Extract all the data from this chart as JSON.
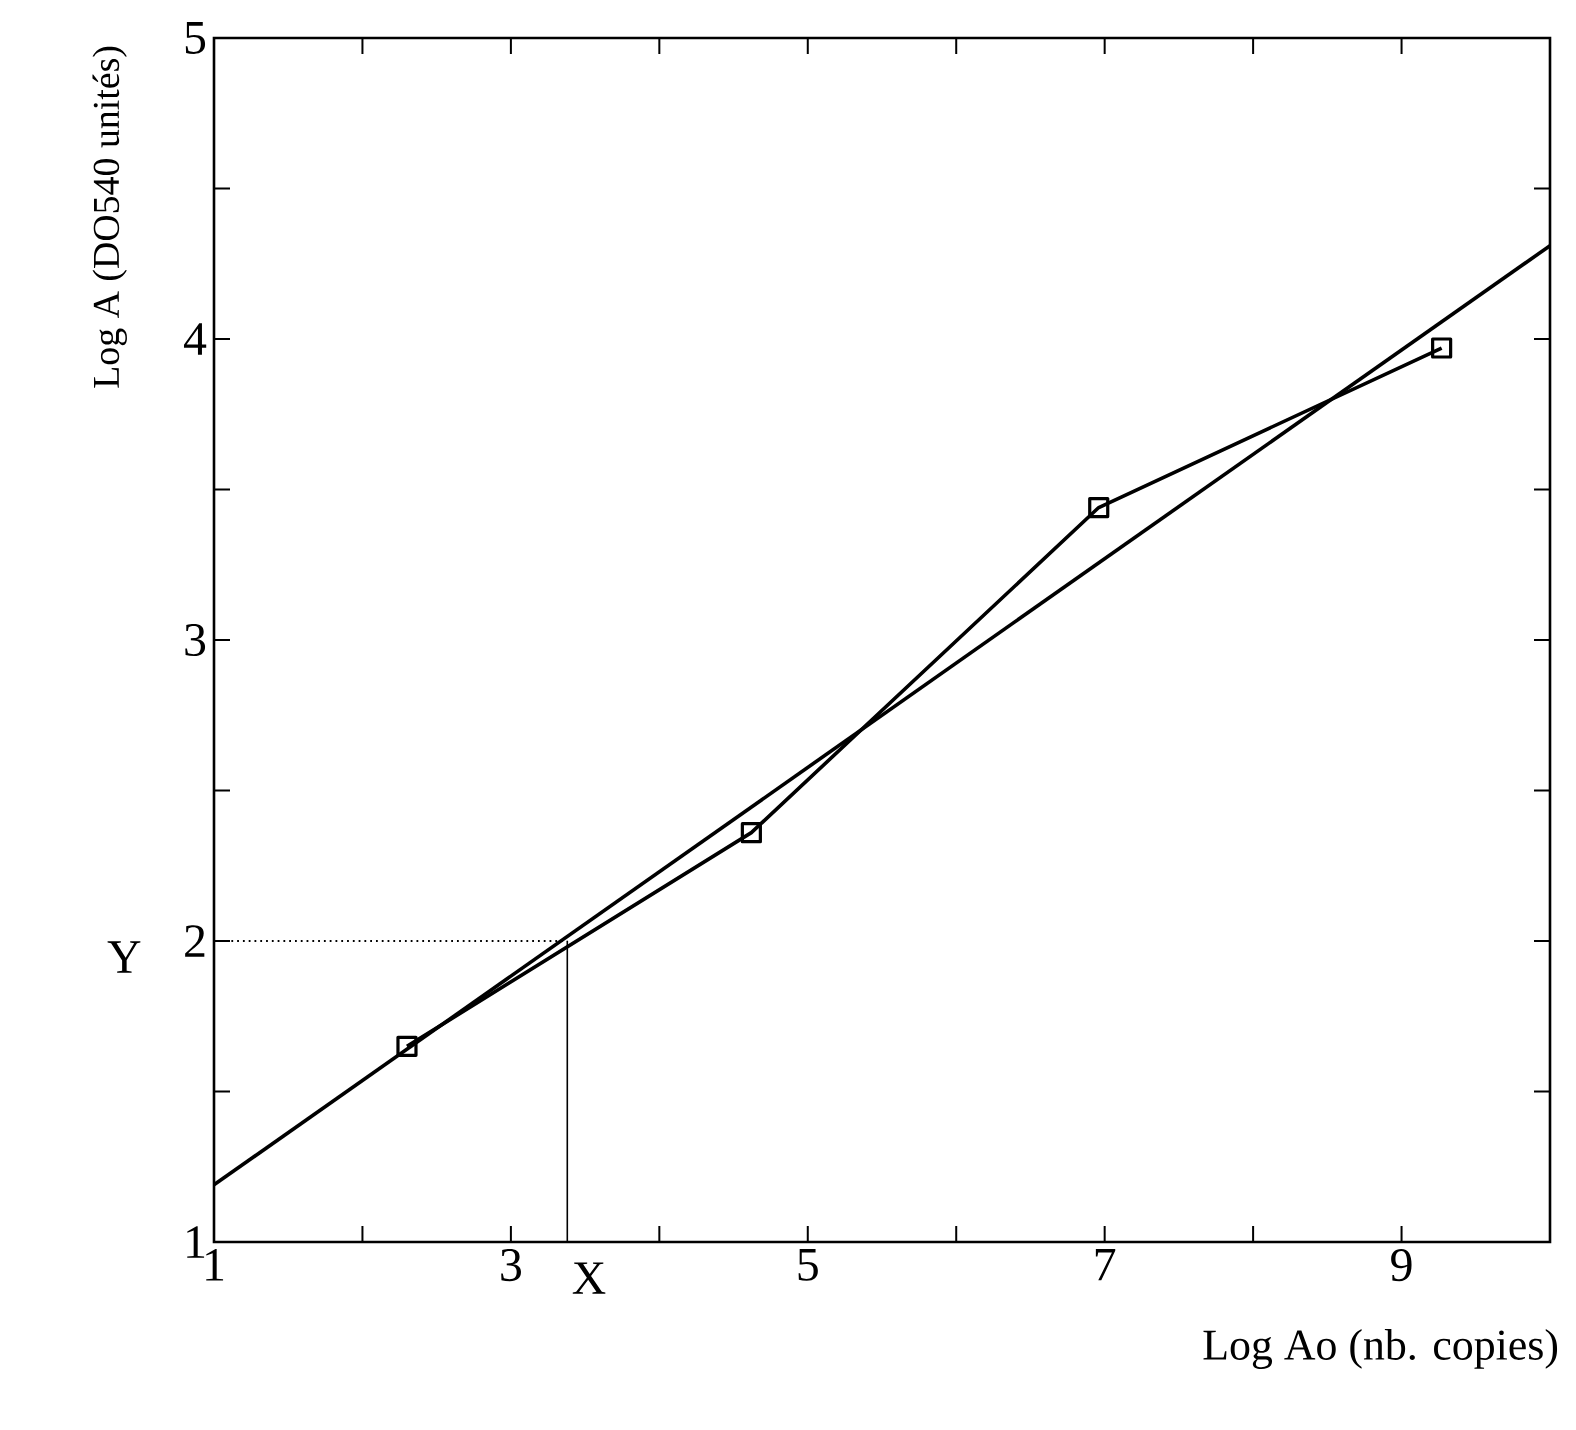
{
  "chart_data": {
    "type": "line",
    "xlabel": "Log Ao (nb. copies)",
    "ylabel": "Log A (DO540 unités)",
    "xlim": [
      1,
      10
    ],
    "ylim": [
      1,
      5
    ],
    "xticks": [
      1,
      {
        "value": 2,
        "label": null
      },
      3,
      {
        "value": 4,
        "label": null
      },
      5,
      {
        "value": 6,
        "label": null
      },
      7,
      {
        "value": 8,
        "label": null
      },
      9,
      {
        "value": 10,
        "label": null
      }
    ],
    "yticks": [
      1,
      {
        "value": 1.5,
        "label": null
      },
      2,
      {
        "value": 2.5,
        "label": null
      },
      3,
      {
        "value": 3.5,
        "label": null
      },
      4,
      {
        "value": 4.5,
        "label": null
      },
      5
    ],
    "series": [
      {
        "x": [
          2.3,
          4.62,
          6.96,
          9.27
        ],
        "values": [
          1.65,
          2.36,
          3.44,
          3.97
        ],
        "color": "#000000",
        "marker": "square",
        "line_style": "solid"
      },
      {
        "x": [
          1,
          10
        ],
        "values": [
          1.19,
          4.31
        ],
        "color": "#000000",
        "marker": "none",
        "line_style": "solid"
      },
      {
        "x": [
          1,
          3.38
        ],
        "values": [
          2,
          2
        ],
        "color": "#000000",
        "marker": "none",
        "line_style": "dotted"
      },
      {
        "x": [
          3.38,
          3.38
        ],
        "values": [
          2,
          1
        ],
        "color": "#000000",
        "marker": "none",
        "line_style": "solid"
      }
    ],
    "annotations": [
      {
        "text": "X",
        "x": 3.38,
        "y": 1
      },
      {
        "text": "Y",
        "x": 1,
        "y": 2
      }
    ]
  }
}
